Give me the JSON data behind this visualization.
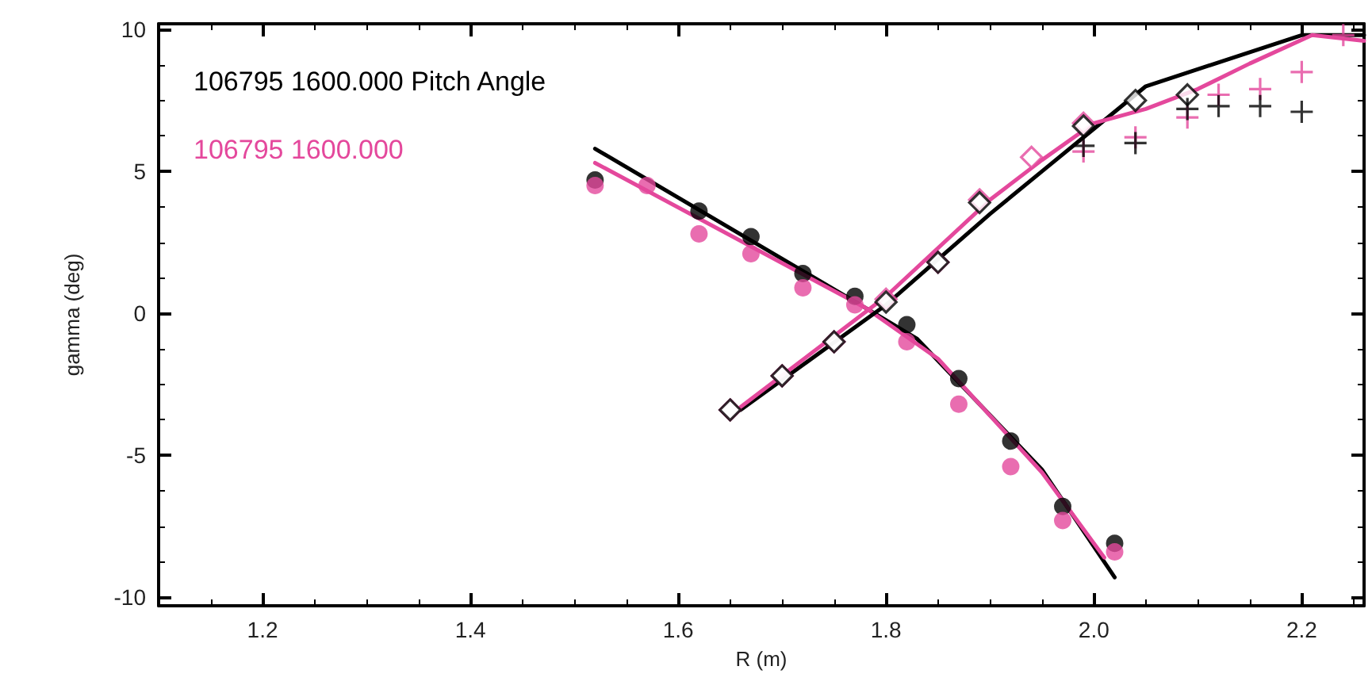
{
  "chart_data": {
    "type": "scatter",
    "xlabel": "R (m)",
    "ylabel": "gamma (deg)",
    "xlim": [
      1.1,
      2.26
    ],
    "xticks": [
      1.2,
      1.4,
      1.6,
      1.8,
      {
        "value": 2,
        "label": "2.0"
      },
      2.2
    ],
    "ylim": [
      -10.3,
      10.2
    ],
    "yticks": [
      -10,
      -5,
      0,
      5,
      10
    ],
    "grid": false,
    "legend": "top left",
    "series": [
      {
        "name": "106795 1600.000 Pitch Angle",
        "color": "#000000",
        "marker": "circle",
        "x": [
          1.52,
          1.62,
          1.67,
          1.72,
          1.77,
          1.82,
          1.87,
          1.92,
          1.97,
          2.02
        ],
        "values": [
          4.7,
          3.6,
          2.7,
          1.4,
          0.6,
          -0.4,
          -2.3,
          -4.5,
          -6.8,
          -8.1
        ]
      },
      {
        "name": "106795 1600.000",
        "color": "#e4489c",
        "marker": "circle",
        "x": [
          1.52,
          1.57,
          1.62,
          1.67,
          1.72,
          1.77,
          1.82,
          1.87,
          1.92,
          1.97,
          2.02
        ],
        "values": [
          4.5,
          4.5,
          2.8,
          2.1,
          0.9,
          0.3,
          -1.0,
          -3.2,
          -5.4,
          -7.3,
          -8.4
        ]
      },
      {
        "type": "line",
        "color": "#000000",
        "marker": "none",
        "x": [
          1.52,
          1.78,
          1.83,
          1.95,
          2.02
        ],
        "values": [
          5.8,
          0.2,
          -0.9,
          -5.5,
          -9.3
        ]
      },
      {
        "type": "line",
        "color": "#e4489c",
        "marker": "none",
        "x": [
          1.52,
          1.78,
          1.85,
          1.95,
          2.01
        ],
        "values": [
          5.3,
          0.2,
          -1.6,
          -5.6,
          -8.6
        ]
      },
      {
        "type": "line",
        "color": "#000000",
        "marker": "none",
        "x": [
          1.66,
          1.8,
          1.9,
          1.95,
          2.0,
          2.05,
          2.2,
          2.26
        ],
        "values": [
          -3.4,
          0.3,
          3.5,
          5.0,
          6.5,
          8.0,
          9.8,
          9.8
        ]
      },
      {
        "type": "line",
        "color": "#e4489c",
        "marker": "none",
        "x": [
          1.66,
          1.8,
          1.9,
          1.95,
          2.0,
          2.05,
          2.1,
          2.15,
          2.21,
          2.26
        ],
        "values": [
          -3.3,
          0.6,
          4.0,
          5.4,
          6.7,
          7.2,
          7.9,
          8.8,
          9.8,
          9.6
        ]
      },
      {
        "color": "#e4489c",
        "marker": "diamond",
        "x": [
          1.65,
          1.7,
          1.75,
          1.8,
          1.85,
          1.89,
          1.94,
          1.99
        ],
        "values": [
          -3.4,
          -2.2,
          -1.0,
          0.5,
          1.8,
          4.0,
          5.5,
          6.7
        ]
      },
      {
        "color": "#000000",
        "marker": "diamond",
        "x": [
          1.65,
          1.7,
          1.75,
          1.8,
          1.85,
          1.89,
          1.99,
          2.04,
          2.09
        ],
        "values": [
          -3.4,
          -2.2,
          -1.0,
          0.4,
          1.8,
          3.9,
          6.6,
          7.5,
          7.7
        ]
      },
      {
        "color": "#e4489c",
        "marker": "cross",
        "x": [
          1.99,
          2.04,
          2.09,
          2.12,
          2.16,
          2.2,
          2.24
        ],
        "values": [
          5.7,
          6.2,
          6.9,
          7.7,
          7.9,
          8.5,
          9.8
        ]
      },
      {
        "color": "#000000",
        "marker": "cross",
        "x": [
          1.99,
          2.04,
          2.09,
          2.12,
          2.16,
          2.2
        ],
        "values": [
          5.9,
          6.0,
          7.2,
          7.3,
          7.3,
          7.1
        ]
      }
    ]
  }
}
